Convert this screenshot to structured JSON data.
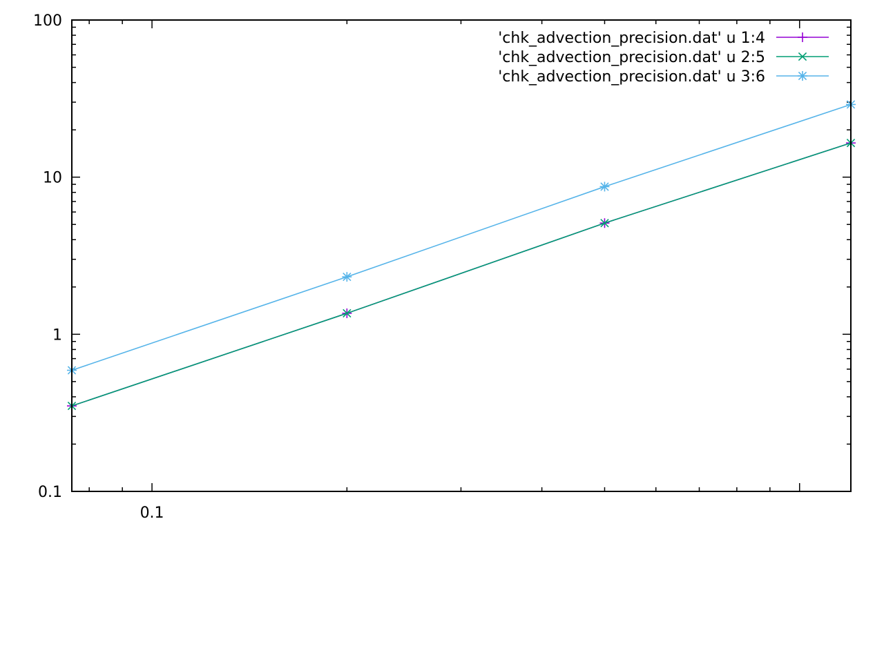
{
  "chart_data": {
    "type": "line",
    "title": "",
    "xlabel": "",
    "ylabel": "",
    "x_scale": "log",
    "y_scale": "log",
    "xlim": [
      0.0752,
      1.2
    ],
    "ylim": [
      0.1,
      100
    ],
    "grid": false,
    "legend_position": "top-right",
    "x_tick_labels": [
      {
        "value": 0.1,
        "label": "0.1"
      }
    ],
    "y_tick_labels": [
      {
        "value": 0.1,
        "label": "0.1"
      },
      {
        "value": 1,
        "label": "1"
      },
      {
        "value": 10,
        "label": "10"
      },
      {
        "value": 100,
        "label": "100"
      }
    ],
    "series": [
      {
        "name": "'chk_advection_precision.dat' u 1:4",
        "color": "#9400d3",
        "marker": "plus",
        "x": [
          0.0752,
          0.2,
          0.5,
          1.2
        ],
        "y": [
          0.35,
          1.36,
          5.1,
          16.5
        ]
      },
      {
        "name": "'chk_advection_precision.dat' u 2:5",
        "color": "#009e73",
        "marker": "cross",
        "x": [
          0.0752,
          0.2,
          0.5,
          1.2
        ],
        "y": [
          0.35,
          1.36,
          5.1,
          16.5
        ]
      },
      {
        "name": "'chk_advection_precision.dat' u 3:6",
        "color": "#56b4e9",
        "marker": "star",
        "x": [
          0.0752,
          0.2,
          0.5,
          1.2
        ],
        "y": [
          0.59,
          2.32,
          8.7,
          29.0
        ]
      }
    ]
  }
}
